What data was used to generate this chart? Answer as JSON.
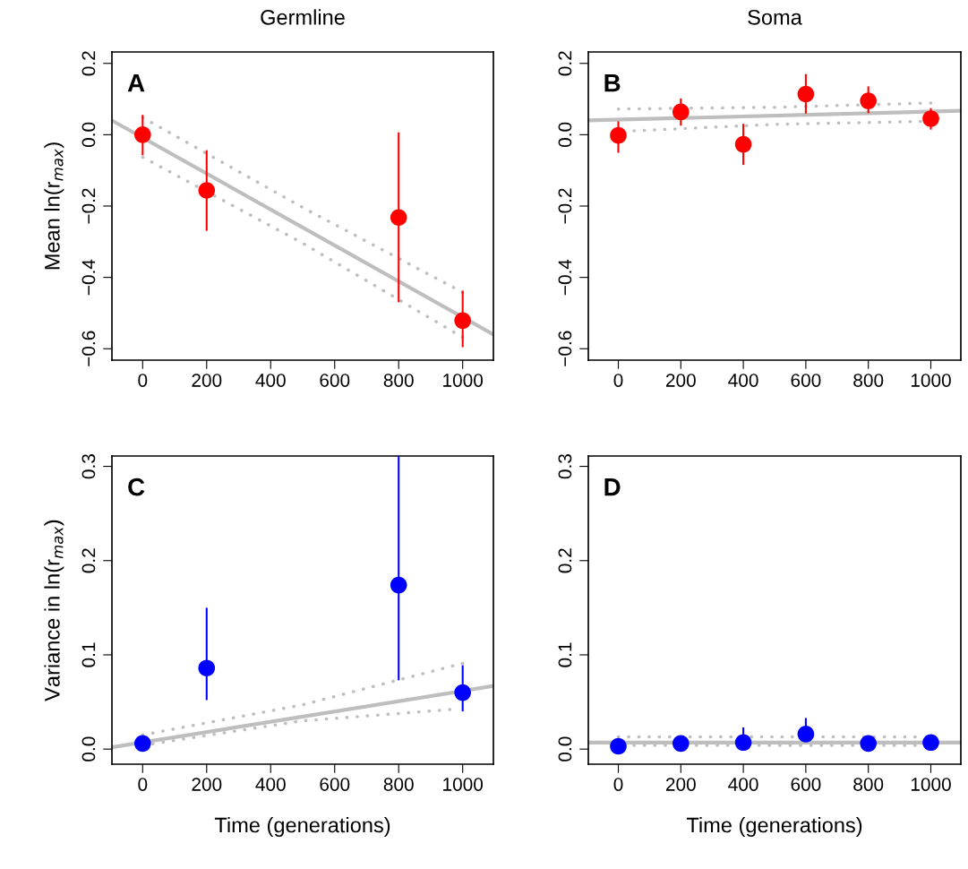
{
  "chart_data": [
    {
      "type": "scatter",
      "title": "Germline",
      "ylabel": "Mean ln(r$_{max}$)",
      "annotations": [
        "A"
      ],
      "xlim": [
        -96,
        1096
      ],
      "ylim": [
        -0.632,
        0.232
      ],
      "xticks": [
        0,
        200,
        400,
        600,
        800,
        1000
      ],
      "yticks": [
        {
          "value": -0.6,
          "label": "−0.6"
        },
        {
          "value": -0.4,
          "label": "−0.4"
        },
        {
          "value": -0.2,
          "label": "−0.2"
        },
        {
          "value": 0,
          "label": "0.0"
        },
        {
          "value": 0.2,
          "label": "0.2"
        }
      ],
      "grid": false,
      "legend": false,
      "series": [
        {
          "type": "line",
          "color": "#bebebe",
          "line_style": "solid",
          "x": [
            -96,
            1096
          ],
          "values": [
            0.04,
            -0.56
          ]
        },
        {
          "type": "line",
          "color": "#bebebe",
          "line_style": "dotted",
          "x": [
            0,
            500,
            1000
          ],
          "values": [
            0.048,
            -0.204,
            -0.442
          ]
        },
        {
          "type": "line",
          "color": "#bebebe",
          "line_style": "dotted",
          "x": [
            0,
            500,
            1000
          ],
          "values": [
            -0.063,
            -0.304,
            -0.568
          ]
        },
        {
          "type": "scatter",
          "color": "#ff0000",
          "marker": "circle",
          "x": [
            0,
            200,
            800,
            1000
          ],
          "values": [
            0.0,
            -0.156,
            -0.232,
            -0.521
          ],
          "errors": [
            [
              -0.055,
              0.053
            ],
            [
              -0.267,
              -0.046
            ],
            [
              -0.467,
              0.004
            ],
            [
              -0.593,
              -0.44
            ]
          ]
        }
      ]
    },
    {
      "type": "scatter",
      "title": "Soma",
      "annotations": [
        "B"
      ],
      "xlim": [
        -96,
        1096
      ],
      "ylim": [
        -0.632,
        0.232
      ],
      "xticks": [
        0,
        200,
        400,
        600,
        800,
        1000
      ],
      "yticks": [
        {
          "value": -0.6,
          "label": "−0.6"
        },
        {
          "value": -0.4,
          "label": "−0.4"
        },
        {
          "value": -0.2,
          "label": "−0.2"
        },
        {
          "value": 0,
          "label": "0.0"
        },
        {
          "value": 0.2,
          "label": "0.2"
        }
      ],
      "grid": false,
      "legend": false,
      "series": [
        {
          "type": "line",
          "color": "#bebebe",
          "line_style": "solid",
          "x": [
            -96,
            1096
          ],
          "values": [
            0.04,
            0.067
          ]
        },
        {
          "type": "line",
          "color": "#bebebe",
          "line_style": "dotted",
          "x": [
            0,
            500,
            1000
          ],
          "values": [
            0.072,
            0.077,
            0.089
          ]
        },
        {
          "type": "line",
          "color": "#bebebe",
          "line_style": "dotted",
          "x": [
            50,
            500,
            1000
          ],
          "values": [
            0.011,
            0.029,
            0.038
          ]
        },
        {
          "type": "scatter",
          "color": "#ff0000",
          "marker": "circle",
          "x": [
            0,
            200,
            400,
            600,
            800,
            1000
          ],
          "values": [
            -0.002,
            0.064,
            -0.027,
            0.114,
            0.095,
            0.045
          ],
          "errors": [
            [
              -0.048,
              0.035
            ],
            [
              0.028,
              0.099
            ],
            [
              -0.082,
              0.028
            ],
            [
              0.062,
              0.167
            ],
            [
              0.063,
              0.133
            ],
            [
              0.017,
              0.072
            ]
          ]
        }
      ]
    },
    {
      "type": "scatter",
      "ylabel": "Variance in ln(r$_{max}$)",
      "xlabel": "Time (generations)",
      "annotations": [
        "C"
      ],
      "xlim": [
        -96,
        1096
      ],
      "ylim": [
        -0.016,
        0.311
      ],
      "xticks": [
        0,
        200,
        400,
        600,
        800,
        1000
      ],
      "yticks": [
        {
          "value": 0,
          "label": "0.0"
        },
        0.1,
        0.2,
        0.3
      ],
      "grid": false,
      "legend": false,
      "series": [
        {
          "type": "line",
          "color": "#bebebe",
          "line_style": "solid",
          "x": [
            -96,
            1096
          ],
          "values": [
            0.002,
            0.067
          ]
        },
        {
          "type": "line",
          "color": "#bebebe",
          "line_style": "dotted",
          "x": [
            0,
            500,
            1000
          ],
          "values": [
            0.015,
            0.047,
            0.091
          ]
        },
        {
          "type": "line",
          "color": "#bebebe",
          "line_style": "dotted",
          "x": [
            0,
            500,
            960
          ],
          "values": [
            0.004,
            0.03,
            0.042
          ]
        },
        {
          "type": "scatter",
          "color": "#0000ff",
          "marker": "circle",
          "x": [
            0,
            200,
            800,
            1000
          ],
          "values": [
            0.006,
            0.086,
            0.174,
            0.06
          ],
          "errors": [
            null,
            [
              0.053,
              0.149
            ],
            [
              0.074,
              0.311
            ],
            [
              0.041,
              0.088
            ]
          ]
        }
      ]
    },
    {
      "type": "scatter",
      "xlabel": "Time (generations)",
      "annotations": [
        "D"
      ],
      "xlim": [
        -96,
        1096
      ],
      "ylim": [
        -0.016,
        0.311
      ],
      "xticks": [
        0,
        200,
        400,
        600,
        800,
        1000
      ],
      "yticks": [
        {
          "value": 0,
          "label": "0.0"
        },
        0.1,
        0.2,
        0.3
      ],
      "grid": false,
      "legend": false,
      "series": [
        {
          "type": "line",
          "color": "#bebebe",
          "line_style": "solid",
          "x": [
            -96,
            1096
          ],
          "values": [
            0.007,
            0.007
          ]
        },
        {
          "type": "line",
          "color": "#bebebe",
          "line_style": "dotted",
          "x": [
            0,
            500,
            950
          ],
          "values": [
            0.013,
            0.013,
            0.013
          ]
        },
        {
          "type": "line",
          "color": "#bebebe",
          "line_style": "dotted",
          "x": [
            50,
            500,
            950
          ],
          "values": [
            0.004,
            0.004,
            0.004
          ]
        },
        {
          "type": "scatter",
          "color": "#0000ff",
          "marker": "circle",
          "x": [
            0,
            200,
            400,
            600,
            800,
            1000
          ],
          "values": [
            0.003,
            0.006,
            0.007,
            0.016,
            0.006,
            0.007
          ],
          "errors": [
            [
              0.003,
              0.01
            ],
            null,
            [
              0.007,
              0.022
            ],
            [
              0.016,
              0.032
            ],
            null,
            null
          ]
        }
      ]
    }
  ]
}
